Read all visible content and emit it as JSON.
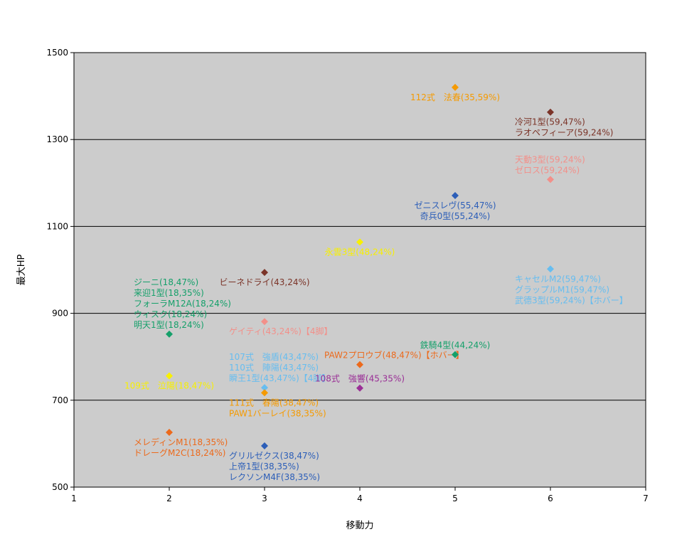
{
  "chart_data": {
    "type": "scatter",
    "xlabel": "移動力",
    "ylabel": "最大HP",
    "xlim": [
      1,
      7
    ],
    "ylim": [
      500,
      1500
    ],
    "x_ticks": [
      "1",
      "2",
      "3",
      "4",
      "5",
      "6",
      "7"
    ],
    "y_ticks": [
      "500",
      "700",
      "900",
      "1100",
      "1300",
      "1500"
    ],
    "grid": "horizontal",
    "plot_background": "#cccccc",
    "points": [
      {
        "x": 5,
        "y": 1420,
        "color": "#f59a00",
        "labels": [
          "112式　法春(35,59%)"
        ],
        "label_pos": "below-center"
      },
      {
        "x": 6,
        "y": 1363,
        "color": "#7b3428",
        "labels": [
          "冷河1型(59,47%)",
          "ラオペフィーア(59,24%)"
        ],
        "label_pos": "below-left"
      },
      {
        "x": 6,
        "y": 1208,
        "color": "#f2908a",
        "labels": [
          "天動3型(59,24%)",
          "ゼロス(59,24%)"
        ],
        "label_pos": "above-left"
      },
      {
        "x": 5,
        "y": 1171,
        "color": "#2c5eb8",
        "labels": [
          "ゼニスレヴ(55,47%)",
          "奇兵0型(55,24%)"
        ],
        "label_pos": "below-center"
      },
      {
        "x": 4,
        "y": 1064,
        "color": "#f8f000",
        "labels": [
          "永雲3型(48,24%)"
        ],
        "label_pos": "below-center"
      },
      {
        "x": 6,
        "y": 1002,
        "color": "#66bdf0",
        "labels": [
          "キャセルM2(59,47%)",
          "グラップルM1(59,47%)",
          "武德3型(59,24%)【ホバー】"
        ],
        "label_pos": "below-left"
      },
      {
        "x": 3,
        "y": 994,
        "color": "#7b3428",
        "labels": [
          "ビーネドライ(43,24%)"
        ],
        "label_pos": "below-center"
      },
      {
        "x": 3,
        "y": 881,
        "color": "#f2908a",
        "labels": [
          "ゲイティ(43,24%)【4脚】"
        ],
        "label_pos": "below-left"
      },
      {
        "x": 2,
        "y": 852,
        "color": "#15a06a",
        "labels": [
          "ジーニ(18,47%)",
          "来迎1型(18,35%)",
          "フォーラM12A(18,24%)",
          "ウィスク(18,24%)",
          "明天1型(18,24%)"
        ],
        "label_pos": "above-left"
      },
      {
        "x": 5,
        "y": 805,
        "color": "#15a06a",
        "labels": [
          "鉄騎4型(44,24%)"
        ],
        "label_pos": "above-center"
      },
      {
        "x": 4,
        "y": 782,
        "color": "#ec6a1c",
        "labels": [
          "PAW2プロウブ(48,47%)【ホバー】"
        ],
        "label_pos": "above-left"
      },
      {
        "x": 2,
        "y": 756,
        "color": "#f8f000",
        "labels": [
          "109式　泣陽(18,47%)"
        ],
        "label_pos": "below-center"
      },
      {
        "x": 3,
        "y": 729,
        "color": "#66bdf0",
        "labels": [
          "107式　強盾(43,47%)",
          "110式　陣陽(43,47%)",
          "瞬王1型(43,47%)【4脚】"
        ],
        "label_pos": "above-left"
      },
      {
        "x": 4,
        "y": 728,
        "color": "#9a2f96",
        "labels": [
          "108式　強響(45,35%)"
        ],
        "label_pos": "above-center"
      },
      {
        "x": 3,
        "y": 717,
        "color": "#f59a00",
        "labels": [
          "111式　春陽(38,47%)",
          "PAW1バーレイ(38,35%)"
        ],
        "label_pos": "below-left"
      },
      {
        "x": 2,
        "y": 626,
        "color": "#ec6a1c",
        "labels": [
          "メレディンM1(18,35%)",
          "ドレーグM2C(18,24%)"
        ],
        "label_pos": "below-left"
      },
      {
        "x": 3,
        "y": 595,
        "color": "#2c5eb8",
        "labels": [
          "グリルゼクス(38,47%)",
          "上帝1型(38,35%)",
          "レクソンM4F(38,35%)"
        ],
        "label_pos": "below-left"
      }
    ]
  }
}
